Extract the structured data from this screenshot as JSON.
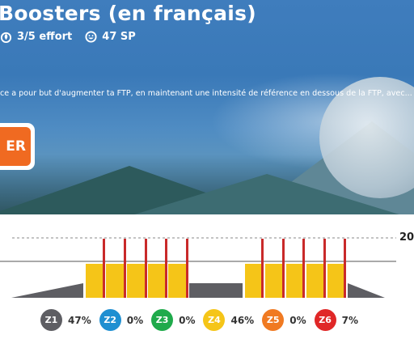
{
  "workout": {
    "title": "Boosters (en français)",
    "effort_label": "3/5 effort",
    "sp_label": "47 SP",
    "description": "ce a pour but d'augmenter ta FTP, en maintenant une intensité de référence en dessous de la FTP, avec...",
    "cta_label": "ER",
    "ftp_axis_label": "20"
  },
  "icons": {
    "effort": "flame-icon",
    "sp": "smiley-icon"
  },
  "zones": [
    {
      "label": "Z1",
      "pct": "47%",
      "color": "#5e5e63"
    },
    {
      "label": "Z2",
      "pct": "0%",
      "color": "#1f8fd1"
    },
    {
      "label": "Z3",
      "pct": "0%",
      "color": "#1faa4b"
    },
    {
      "label": "Z4",
      "pct": "46%",
      "color": "#f5c518"
    },
    {
      "label": "Z5",
      "pct": "0%",
      "color": "#f07a22"
    },
    {
      "label": "Z6",
      "pct": "7%",
      "color": "#e02727"
    }
  ],
  "colors": {
    "accent": "#f06a21",
    "z1": "#5e5e63",
    "z4": "#f5c518",
    "z6": "#c92a2a"
  }
}
